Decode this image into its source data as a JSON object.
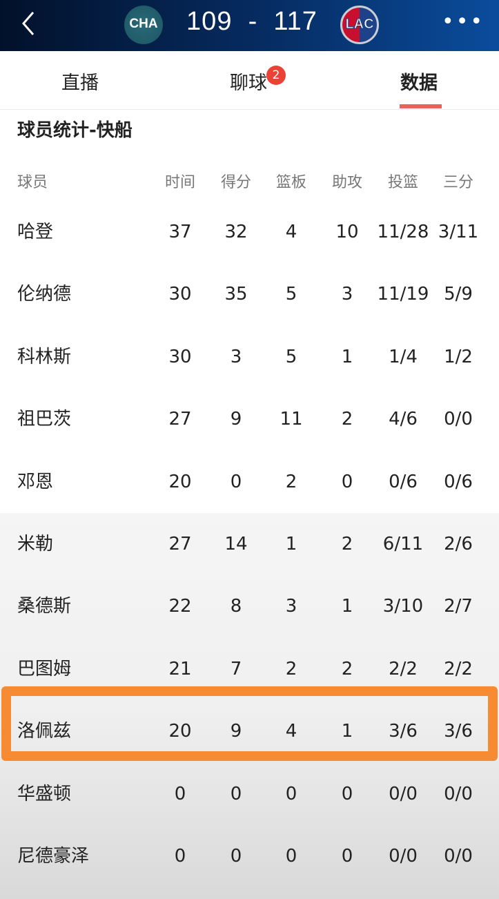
{
  "header": {
    "home_team": "CHA",
    "away_team": "LAC",
    "home_score": "109",
    "separator": "-",
    "away_score": "117",
    "back_icon": "chevron-left-icon",
    "more_icon": "more-horizontal-icon"
  },
  "tabs": [
    {
      "label": "直播"
    },
    {
      "label": "聊球",
      "badge": "2"
    },
    {
      "label": "数据",
      "active": true
    }
  ],
  "accent_color": "#e8615a",
  "highlight_color": "#f68b34",
  "section_title": "球员统计-快船",
  "table": {
    "columns": [
      "球员",
      "时间",
      "得分",
      "篮板",
      "助攻",
      "投篮",
      "三分"
    ],
    "rows": [
      [
        "哈登",
        "37",
        "32",
        "4",
        "10",
        "11/28",
        "3/11"
      ],
      [
        "伦纳德",
        "30",
        "35",
        "5",
        "3",
        "11/19",
        "5/9"
      ],
      [
        "科林斯",
        "30",
        "3",
        "5",
        "1",
        "1/4",
        "1/2"
      ],
      [
        "祖巴茨",
        "27",
        "9",
        "11",
        "2",
        "4/6",
        "0/0"
      ],
      [
        "邓恩",
        "20",
        "0",
        "2",
        "0",
        "0/6",
        "0/6"
      ],
      [
        "米勒",
        "27",
        "14",
        "1",
        "2",
        "6/11",
        "2/6"
      ],
      [
        "桑德斯",
        "22",
        "8",
        "3",
        "1",
        "3/10",
        "2/7"
      ],
      [
        "巴图姆",
        "21",
        "7",
        "2",
        "2",
        "2/2",
        "2/2"
      ],
      [
        "洛佩兹",
        "20",
        "9",
        "4",
        "1",
        "3/6",
        "3/6"
      ],
      [
        "华盛顿",
        "0",
        "0",
        "0",
        "0",
        "0/0",
        "0/0"
      ],
      [
        "尼德豪泽",
        "0",
        "0",
        "0",
        "0",
        "0/0",
        "0/0"
      ]
    ],
    "highlighted_row": 8
  }
}
